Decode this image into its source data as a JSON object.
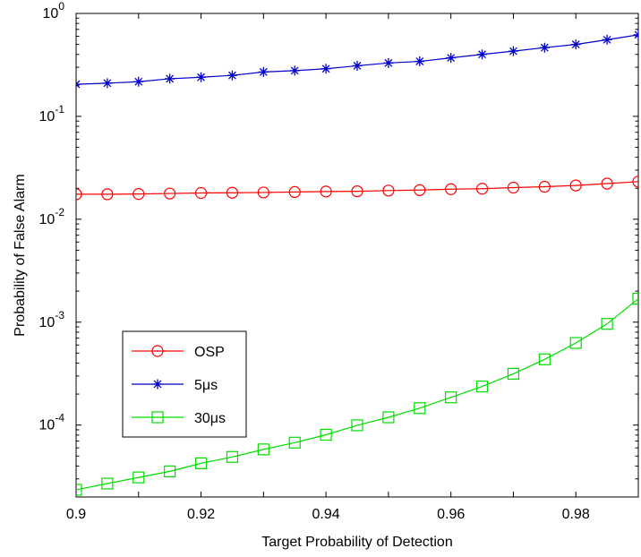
{
  "chart_data": {
    "type": "line",
    "title": "",
    "xlabel": "Target Probability of Detection",
    "ylabel": "Probability of False Alarm",
    "xlim": [
      0.9,
      0.99
    ],
    "ylim": [
      2e-05,
      1
    ],
    "yscale": "log",
    "grid": false,
    "legend_position": "lower-left",
    "x_ticks": [
      {
        "value": 0.9,
        "label": "0.9"
      },
      {
        "value": 0.92,
        "label": "0.92"
      },
      {
        "value": 0.94,
        "label": "0.94"
      },
      {
        "value": 0.96,
        "label": "0.96"
      },
      {
        "value": 0.98,
        "label": "0.98"
      }
    ],
    "y_ticks": [
      {
        "value": 0.0001,
        "base": "10",
        "exp": "-4"
      },
      {
        "value": 0.001,
        "base": "10",
        "exp": "-3"
      },
      {
        "value": 0.01,
        "base": "10",
        "exp": "-2"
      },
      {
        "value": 0.1,
        "base": "10",
        "exp": "-1"
      },
      {
        "value": 1,
        "base": "10",
        "exp": "0"
      }
    ],
    "x": [
      0.9,
      0.905,
      0.91,
      0.915,
      0.92,
      0.925,
      0.93,
      0.935,
      0.94,
      0.945,
      0.95,
      0.955,
      0.96,
      0.965,
      0.97,
      0.975,
      0.98,
      0.985,
      0.99
    ],
    "series": [
      {
        "name": "OSP",
        "color": "#ff0000",
        "marker": "circle",
        "values": [
          0.0175,
          0.0175,
          0.0176,
          0.0178,
          0.018,
          0.0181,
          0.0182,
          0.0184,
          0.0186,
          0.0187,
          0.019,
          0.0192,
          0.0196,
          0.0198,
          0.0203,
          0.0207,
          0.0213,
          0.0222,
          0.0232
        ]
      },
      {
        "name": "5μs",
        "color": "#0000cc",
        "marker": "asterisk",
        "values": [
          0.205,
          0.21,
          0.217,
          0.232,
          0.24,
          0.25,
          0.27,
          0.278,
          0.29,
          0.31,
          0.33,
          0.342,
          0.37,
          0.4,
          0.43,
          0.465,
          0.5,
          0.555,
          0.62
        ]
      },
      {
        "name": "30μs",
        "color": "#00dd00",
        "marker": "square",
        "values": [
          2.35e-05,
          2.7e-05,
          3.1e-05,
          3.55e-05,
          4.25e-05,
          4.9e-05,
          5.8e-05,
          6.75e-05,
          8.05e-05,
          9.95e-05,
          0.000119,
          0.000146,
          0.000186,
          0.000237,
          0.000315,
          0.000435,
          0.000628,
          0.000962,
          0.00169
        ]
      }
    ]
  }
}
